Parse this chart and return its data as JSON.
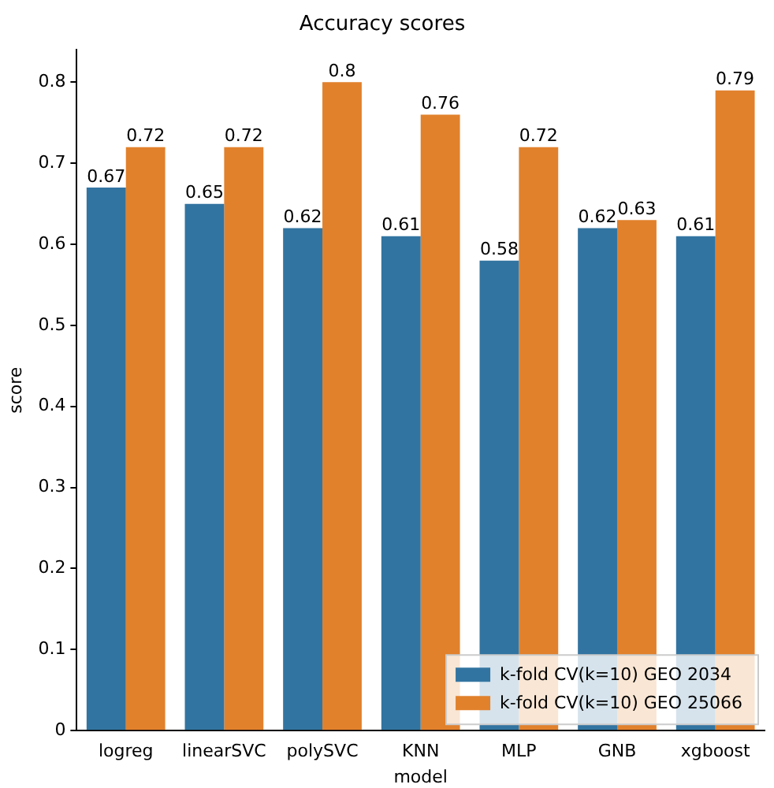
{
  "chart_data": {
    "type": "bar",
    "title": "Accuracy scores",
    "xlabel": "model",
    "ylabel": "score",
    "categories": [
      "logreg",
      "linearSVC",
      "polySVC",
      "KNN",
      "MLP",
      "GNB",
      "xgboost"
    ],
    "series": [
      {
        "name": "k-fold CV(k=10) GEO 2034",
        "color": "#3274a1",
        "values": [
          0.67,
          0.65,
          0.62,
          0.61,
          0.58,
          0.62,
          0.61
        ]
      },
      {
        "name": "k-fold CV(k=10) GEO 25066",
        "color": "#e1812c",
        "values": [
          0.72,
          0.72,
          0.8,
          0.76,
          0.72,
          0.63,
          0.79
        ]
      }
    ],
    "ylim": [
      0,
      0.84
    ],
    "yticks": [
      0,
      0.1,
      0.2,
      0.3,
      0.4,
      0.5,
      0.6,
      0.7,
      0.8
    ],
    "data_labels": true,
    "grid": false,
    "legend": "bottom right"
  }
}
